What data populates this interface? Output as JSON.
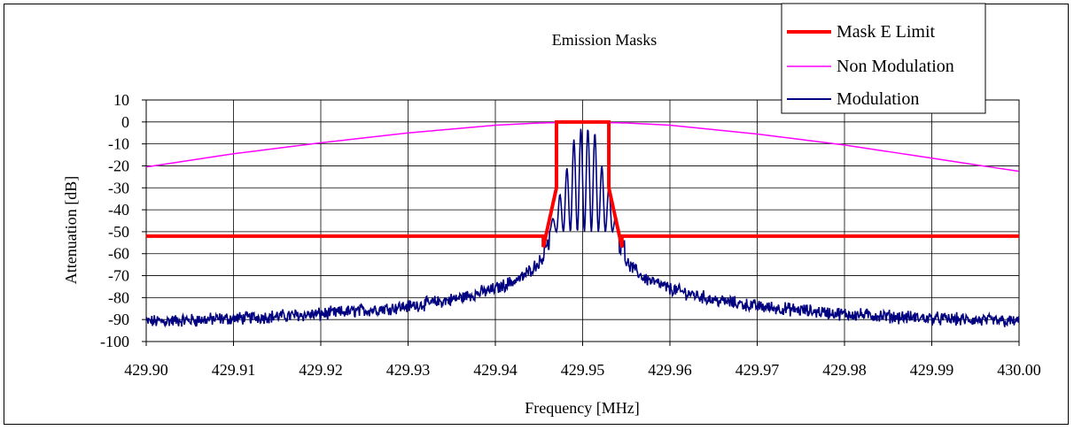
{
  "chart_data": {
    "type": "line",
    "title": "Emission Masks",
    "xlabel": "Frequency [MHz]",
    "ylabel": "Attenuation [dB]",
    "xlim": [
      429.9,
      430.0
    ],
    "ylim": [
      -100,
      10
    ],
    "x_ticks": [
      "429.90",
      "429.91",
      "429.92",
      "429.93",
      "429.94",
      "429.95",
      "429.96",
      "429.97",
      "429.98",
      "429.99",
      "430.00"
    ],
    "y_ticks": [
      "10",
      "0",
      "-10",
      "-20",
      "-30",
      "-40",
      "-50",
      "-60",
      "-70",
      "-80",
      "-90",
      "-100"
    ],
    "grid": true,
    "legend_position": "top-right",
    "series": [
      {
        "name": "Mask E Limit",
        "color": "#ff0000",
        "x": [
          429.9,
          429.9455,
          429.9455,
          429.947,
          429.947,
          429.953,
          429.953,
          429.9545,
          429.9545,
          430.0
        ],
        "y": [
          -52,
          -52,
          -57,
          -30,
          0,
          0,
          -30,
          -57,
          -52,
          -52
        ]
      },
      {
        "name": "Non Modulation",
        "color": "#ff00ff",
        "x": [
          429.9,
          429.91,
          429.92,
          429.93,
          429.94,
          429.945,
          429.95,
          429.955,
          429.96,
          429.97,
          429.98,
          429.99,
          430.0
        ],
        "y": [
          -20.5,
          -14.5,
          -9.5,
          -5,
          -1.5,
          -0.5,
          0,
          -0.5,
          -1.5,
          -5.5,
          -10.5,
          -16.5,
          -22.5
        ]
      },
      {
        "name": "Modulation",
        "color": "#000080",
        "envelope_x": [
          429.9,
          429.91,
          429.92,
          429.93,
          429.935,
          429.94,
          429.943,
          429.945,
          429.946,
          429.954,
          429.955,
          429.957,
          429.96,
          429.965,
          429.97,
          429.98,
          429.99,
          430.0
        ],
        "envelope_y": [
          -91,
          -89.5,
          -87.5,
          -84,
          -81,
          -76,
          -71,
          -64,
          -58,
          -58,
          -64,
          -71,
          -76,
          -81,
          -84,
          -87.5,
          -89.5,
          -91
        ],
        "peaks_x": [
          429.9458,
          429.9466,
          429.9474,
          429.9482,
          429.949,
          429.9498,
          429.9506,
          429.9514,
          429.9522,
          429.953,
          429.9538,
          429.9546
        ],
        "peaks_y": [
          -57,
          -44,
          -33,
          -21,
          -8,
          -3,
          -3,
          -5,
          -20,
          -30,
          -43,
          -57
        ],
        "trough_level": -50
      }
    ]
  }
}
